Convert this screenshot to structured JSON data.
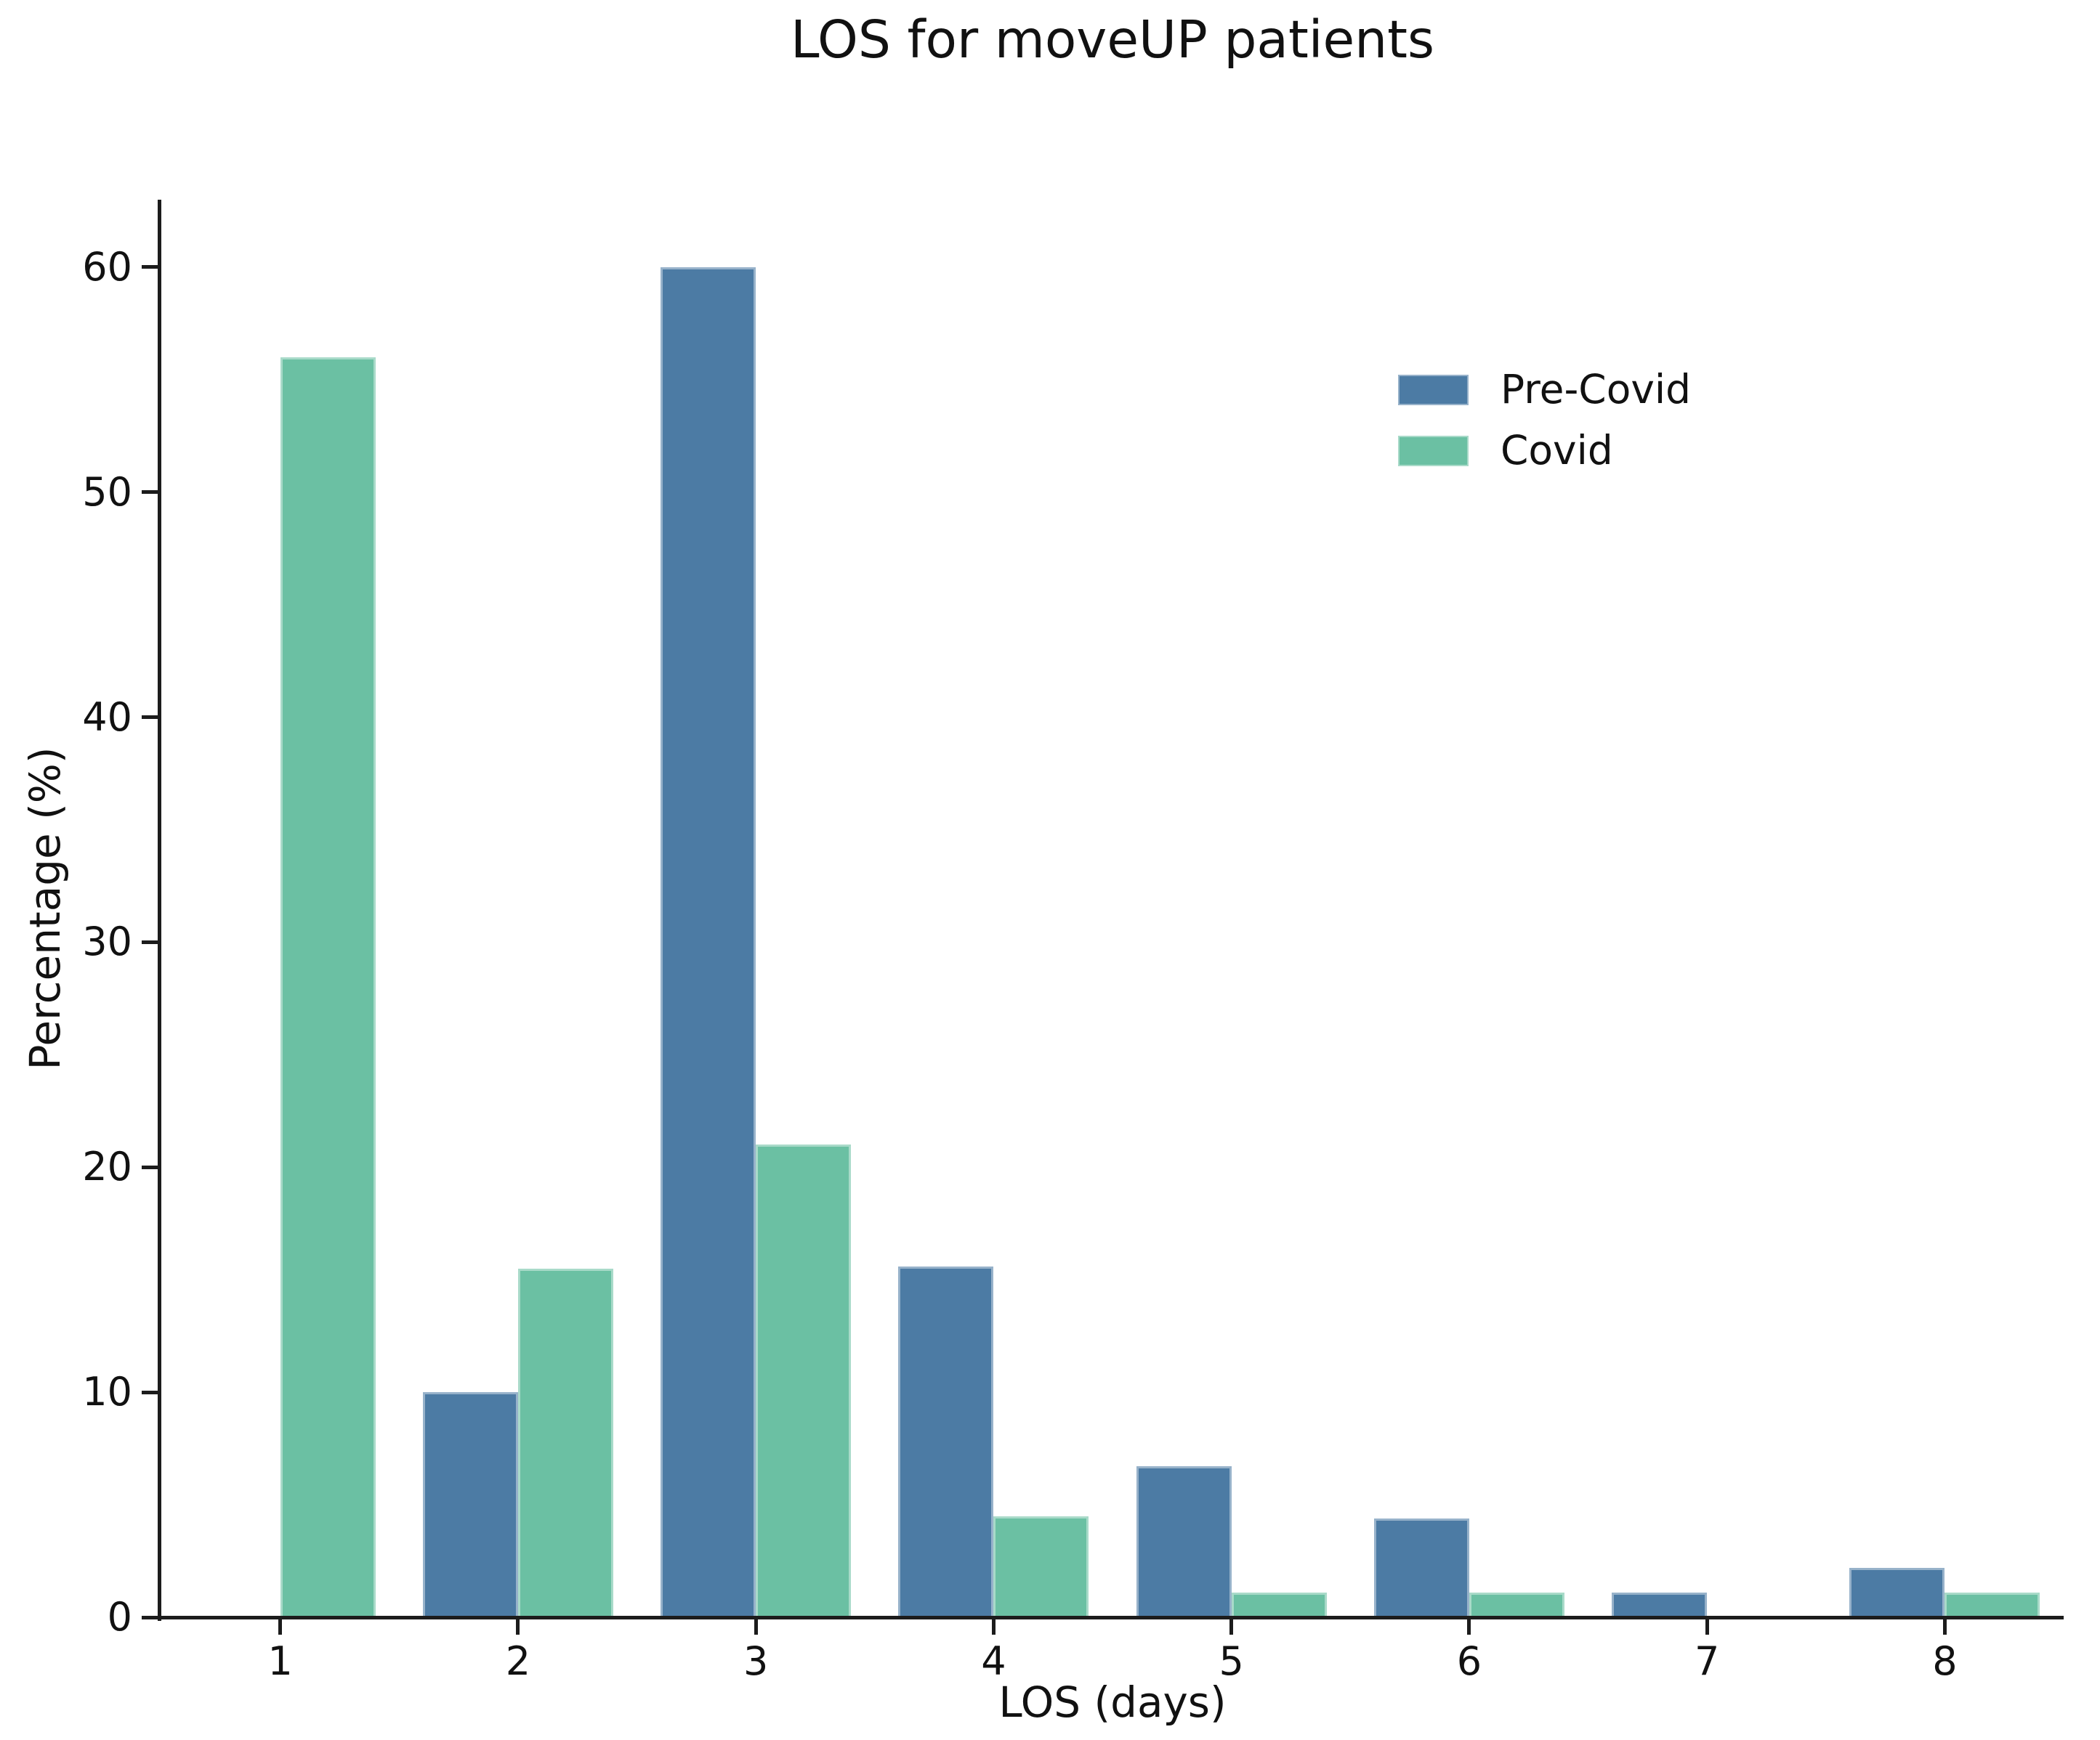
{
  "chart_data": {
    "type": "bar",
    "title": "LOS for moveUP patients",
    "xlabel": "LOS (days)",
    "ylabel": "Percentage (%)",
    "categories": [
      "1",
      "2",
      "3",
      "4",
      "5",
      "6",
      "7",
      "8"
    ],
    "series": [
      {
        "name": "Pre-Covid",
        "color": "#4c7ba4",
        "values": [
          0,
          10,
          60,
          15.6,
          6.7,
          4.4,
          1.1,
          2.2
        ]
      },
      {
        "name": "Covid",
        "color": "#6bc0a3",
        "values": [
          56,
          15.5,
          21,
          4.5,
          1.1,
          1.1,
          0,
          1.1
        ]
      }
    ],
    "y_ticks": [
      0,
      10,
      20,
      30,
      40,
      50,
      60
    ],
    "ylim": [
      0,
      63
    ],
    "xlim": [
      0.5,
      8.5
    ],
    "bar_width_units": 0.4,
    "grid": false,
    "legend_position": "upper right",
    "spines": [
      "left",
      "bottom"
    ]
  }
}
